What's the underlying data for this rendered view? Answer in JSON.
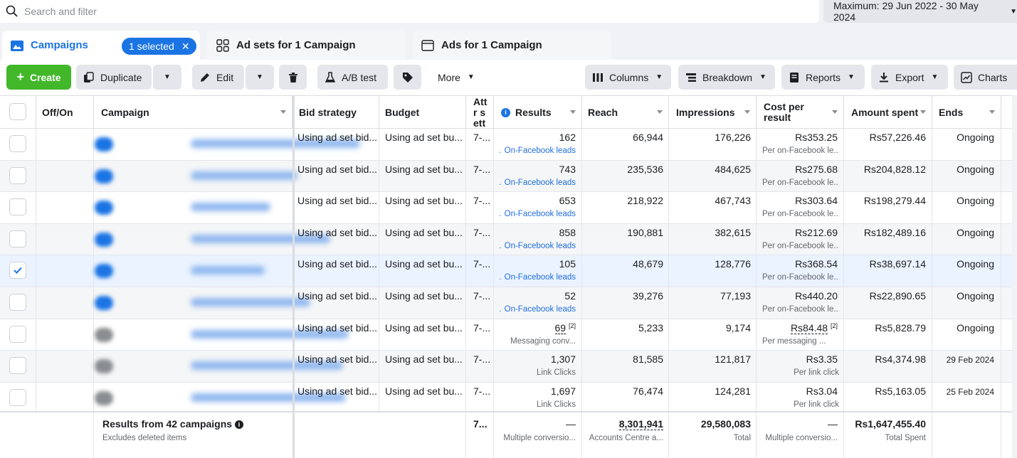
{
  "search": {
    "placeholder": "Search and filter"
  },
  "date_range": {
    "label": "Maximum: 29 Jun 2022 - 30 May 2024"
  },
  "tabs": {
    "campaigns": "Campaigns",
    "selected_badge": "1 selected",
    "ad_sets": "Ad sets for 1 Campaign",
    "ads": "Ads for 1 Campaign"
  },
  "toolbar": {
    "create": "Create",
    "duplicate": "Duplicate",
    "edit": "Edit",
    "ab_test": "A/B test",
    "more": "More",
    "columns": "Columns",
    "breakdown": "Breakdown",
    "reports": "Reports",
    "export": "Export",
    "charts": "Charts"
  },
  "headers": {
    "off_on": "Off/On",
    "campaign": "Campaign",
    "bid_strategy": "Bid strategy",
    "budget": "Budget",
    "attribution": "Attr sett",
    "results": "Results",
    "reach": "Reach",
    "impressions": "Impressions",
    "cost_per_result": "Cost per result",
    "amount_spent": "Amount spent",
    "ends": "Ends"
  },
  "rows": [
    {
      "checked": false,
      "on": true,
      "bid": "Using ad set bid...",
      "budget": "Using ad set bu...",
      "attr": "7-...",
      "results": "162",
      "results_sub": "On-Facebook leads",
      "reach": "66,944",
      "impressions": "176,226",
      "cpr": "Rs353.25",
      "cpr_sub": "Per on-Facebook le...",
      "spent": "Rs57,226.46",
      "ends": "Ongoing"
    },
    {
      "checked": false,
      "on": true,
      "bid": "Using ad set bid...",
      "budget": "Using ad set bu...",
      "attr": "7-...",
      "results": "743",
      "results_sub": "On-Facebook leads",
      "reach": "235,536",
      "impressions": "484,625",
      "cpr": "Rs275.68",
      "cpr_sub": "Per on-Facebook le...",
      "spent": "Rs204,828.12",
      "ends": "Ongoing"
    },
    {
      "checked": false,
      "on": true,
      "bid": "Using ad set bid...",
      "budget": "Using ad set bu...",
      "attr": "7-...",
      "results": "653",
      "results_sub": "On-Facebook leads",
      "reach": "218,922",
      "impressions": "467,743",
      "cpr": "Rs303.64",
      "cpr_sub": "Per on-Facebook le...",
      "spent": "Rs198,279.44",
      "ends": "Ongoing"
    },
    {
      "checked": false,
      "on": true,
      "bid": "Using ad set bid...",
      "budget": "Using ad set bu...",
      "attr": "7-...",
      "results": "858",
      "results_sub": "On-Facebook leads",
      "reach": "190,881",
      "impressions": "382,615",
      "cpr": "Rs212.69",
      "cpr_sub": "Per on-Facebook le...",
      "spent": "Rs182,489.16",
      "ends": "Ongoing"
    },
    {
      "checked": true,
      "on": true,
      "bid": "Using ad set bid...",
      "budget": "Using ad set bu...",
      "attr": "7-...",
      "results": "105",
      "results_sub": "On-Facebook leads",
      "reach": "48,679",
      "impressions": "128,776",
      "cpr": "Rs368.54",
      "cpr_sub": "Per on-Facebook le...",
      "spent": "Rs38,697.14",
      "ends": "Ongoing"
    },
    {
      "checked": false,
      "on": true,
      "bid": "Using ad set bid...",
      "budget": "Using ad set bu...",
      "attr": "7-...",
      "results": "52",
      "results_sub": "On-Facebook leads",
      "reach": "39,276",
      "impressions": "77,193",
      "cpr": "Rs440.20",
      "cpr_sub": "Per on-Facebook le...",
      "spent": "Rs22,890.65",
      "ends": "Ongoing"
    },
    {
      "checked": false,
      "on": false,
      "bid": "Using ad set bid...",
      "budget": "Using ad set bu...",
      "attr": "7-...",
      "results": "69",
      "results_note": "[2]",
      "results_sub": "Messaging conv...",
      "reach": "5,233",
      "impressions": "9,174",
      "cpr": "Rs84.48",
      "cpr_note": "[2]",
      "cpr_sub": "Per messaging ...",
      "spent": "Rs5,828.79",
      "ends": "Ongoing"
    },
    {
      "checked": false,
      "on": false,
      "bid": "Using ad set bid...",
      "budget": "Using ad set bu...",
      "attr": "7-...",
      "results": "1,307",
      "results_sub": "Link Clicks",
      "reach": "81,585",
      "impressions": "121,817",
      "cpr": "Rs3.35",
      "cpr_sub": "Per link click",
      "spent": "Rs4,374.98",
      "ends": "29 Feb 2024"
    },
    {
      "checked": false,
      "on": false,
      "bid": "Using ad set bid...",
      "budget": "Using ad set bu...",
      "attr": "7-...",
      "results": "1,697",
      "results_sub": "Link Clicks",
      "reach": "76,474",
      "impressions": "124,281",
      "cpr": "Rs3.04",
      "cpr_sub": "Per link click",
      "spent": "Rs5,163.05",
      "ends": "25 Feb 2024"
    }
  ],
  "footer": {
    "title": "Results from 42 campaigns",
    "subtitle": "Excludes deleted items",
    "attr": "7...",
    "results": "—",
    "results_sub": "Multiple conversio...",
    "reach": "8,301,941",
    "reach_sub": "Accounts Centre a...",
    "impressions": "29,580,083",
    "impressions_sub": "Total",
    "cpr": "—",
    "cpr_sub": "Multiple conversio...",
    "spent": "Rs1,647,455.40",
    "spent_sub": "Total Spent"
  },
  "colors": {
    "accent": "#1b74e4",
    "create": "#42b72a",
    "link": "#216fdb"
  }
}
